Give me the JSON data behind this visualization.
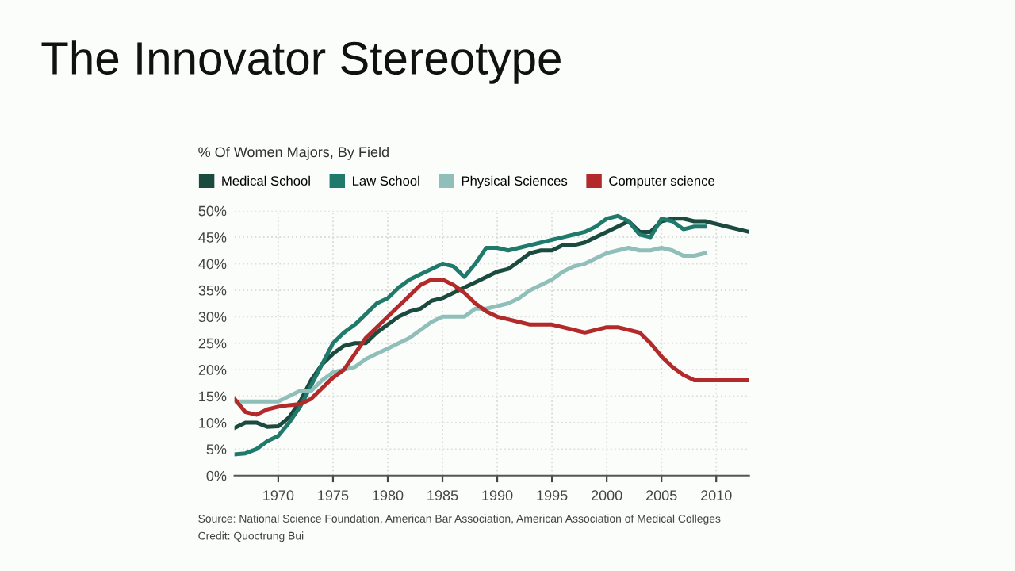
{
  "chart_data": {
    "type": "line",
    "title": "The Innovator Stereotype",
    "subtitle": "% Of Women Majors, By Field",
    "annotations": [
      "Source: National Science Foundation, American Bar Association, American Association of Medical Colleges",
      "Credit: Quoctrung Bui"
    ],
    "series": [
      {
        "name": "Medical School",
        "color": "#1b4a3f",
        "x": [
          1966,
          1967,
          1968,
          1969,
          1970,
          1971,
          1972,
          1973,
          1974,
          1975,
          1976,
          1977,
          1978,
          1979,
          1980,
          1981,
          1982,
          1983,
          1984,
          1985,
          1986,
          1987,
          1988,
          1989,
          1990,
          1991,
          1992,
          1993,
          1994,
          1995,
          1996,
          1997,
          1998,
          1999,
          2000,
          2001,
          2002,
          2003,
          2004,
          2005,
          2006,
          2007,
          2008,
          2009,
          2010,
          2011,
          2012,
          2013
        ],
        "values": [
          9,
          10,
          10,
          9.2,
          9.3,
          11,
          14,
          18,
          21,
          23,
          24.5,
          25,
          25,
          27,
          28.5,
          30,
          31,
          31.5,
          33,
          33.5,
          34.5,
          35.5,
          36.5,
          37.5,
          38.5,
          39,
          40.5,
          42,
          42.5,
          42.5,
          43.5,
          43.5,
          44,
          45,
          46,
          47,
          48,
          46,
          46,
          48,
          48.5,
          48.5,
          48,
          48,
          47.5,
          47,
          46.5,
          46
        ]
      },
      {
        "name": "Law School",
        "color": "#1f7a6c",
        "x": [
          1966,
          1967,
          1968,
          1969,
          1970,
          1971,
          1972,
          1973,
          1974,
          1975,
          1976,
          1977,
          1978,
          1979,
          1980,
          1981,
          1982,
          1983,
          1984,
          1985,
          1986,
          1987,
          1988,
          1989,
          1990,
          1991,
          1992,
          1993,
          1994,
          1995,
          1996,
          1997,
          1998,
          1999,
          2000,
          2001,
          2002,
          2003,
          2004,
          2005,
          2006,
          2007,
          2008,
          2009
        ],
        "values": [
          4,
          4.2,
          5,
          6.5,
          7.5,
          10,
          13,
          17,
          21,
          25,
          27,
          28.5,
          30.5,
          32.5,
          33.5,
          35.5,
          37,
          38,
          39,
          40,
          39.5,
          37.5,
          40,
          43,
          43,
          42.5,
          43,
          43.5,
          44,
          44.5,
          45,
          45.5,
          46,
          47,
          48.5,
          49,
          48,
          45.5,
          45,
          48.5,
          48,
          46.5,
          47,
          47
        ]
      },
      {
        "name": "Physical Sciences",
        "color": "#8fbfb8",
        "x": [
          1966,
          1970,
          1971,
          1972,
          1973,
          1974,
          1975,
          1976,
          1977,
          1978,
          1979,
          1980,
          1981,
          1982,
          1983,
          1984,
          1985,
          1986,
          1987,
          1988,
          1989,
          1990,
          1991,
          1992,
          1993,
          1994,
          1995,
          1996,
          1997,
          1998,
          1999,
          2000,
          2001,
          2002,
          2003,
          2004,
          2005,
          2006,
          2007,
          2008,
          2009
        ],
        "values": [
          14,
          14,
          15,
          16,
          16,
          18,
          19.5,
          20,
          20.5,
          22,
          23,
          24,
          25,
          26,
          27.5,
          29,
          30,
          30,
          30,
          31.5,
          31.5,
          32,
          32.5,
          33.5,
          35,
          36,
          37,
          38.5,
          39.5,
          40,
          41,
          42,
          42.5,
          43,
          42.5,
          42.5,
          43,
          42.5,
          41.5,
          41.5,
          42
        ]
      },
      {
        "name": "Computer science",
        "color": "#b22a2a",
        "x": [
          1966,
          1967,
          1968,
          1969,
          1970,
          1971,
          1972,
          1973,
          1974,
          1975,
          1976,
          1977,
          1978,
          1979,
          1980,
          1981,
          1982,
          1983,
          1984,
          1985,
          1986,
          1987,
          1988,
          1989,
          1990,
          1991,
          1992,
          1993,
          1994,
          1995,
          1996,
          1997,
          1998,
          1999,
          2000,
          2001,
          2002,
          2003,
          2004,
          2005,
          2006,
          2007,
          2008,
          2009,
          2010,
          2011,
          2012,
          2013
        ],
        "values": [
          14.5,
          12,
          11.5,
          12.5,
          13,
          13.3,
          13.5,
          14.5,
          16.5,
          18.5,
          20,
          23,
          26,
          28,
          30,
          32,
          34,
          36,
          37,
          37,
          36,
          34.5,
          32.5,
          31,
          30,
          29.5,
          29,
          28.5,
          28.5,
          28.5,
          28,
          27.5,
          27,
          27.5,
          28,
          28,
          27.5,
          27,
          25,
          22.5,
          20.5,
          19,
          18,
          18,
          18,
          18,
          18,
          18
        ]
      }
    ],
    "xlim": [
      1966,
      2013
    ],
    "xticks": [
      1970,
      1975,
      1980,
      1985,
      1990,
      1995,
      2000,
      2005,
      2010
    ],
    "ylim": [
      0,
      50
    ],
    "yticks": [
      {
        "value": 0,
        "label": "0%"
      },
      {
        "value": 5,
        "label": "5%"
      },
      {
        "value": 10,
        "label": "10%"
      },
      {
        "value": 15,
        "label": "15%"
      },
      {
        "value": 20,
        "label": "20%"
      },
      {
        "value": 25,
        "label": "25%"
      },
      {
        "value": 30,
        "label": "30%"
      },
      {
        "value": 35,
        "label": "35%"
      },
      {
        "value": 40,
        "label": "40%"
      },
      {
        "value": 45,
        "label": "45%"
      },
      {
        "value": 50,
        "label": "50%"
      }
    ],
    "grid": true,
    "legend": "top"
  }
}
